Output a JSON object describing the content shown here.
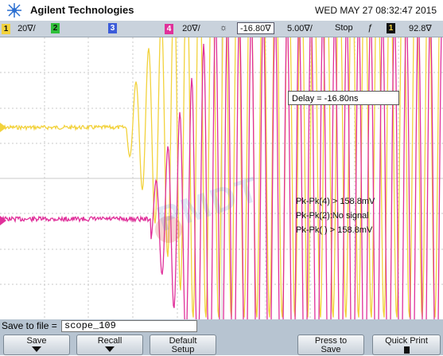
{
  "header": {
    "brand": "Agilent Technologies",
    "datetime": "WED MAY 27 08:32:47 2015"
  },
  "status_bar": {
    "ch1_num": "1",
    "ch1_scale": "20∇/",
    "ch2_num": "2",
    "ch3_num": "3",
    "ch4_num": "4",
    "ch4_scale": "20∇/",
    "delay_value": "-16.80∇",
    "timebase": "5.00∇/",
    "run_state": "Stop",
    "trig_source": "1",
    "trig_level": "92.8∇"
  },
  "screen": {
    "delay_readout": "Delay = -16.80ns",
    "measurements": [
      "Pk-Pk(4) > 158.8mV",
      "Pk-Pk(2):No signal",
      "Pk-Pk( ) > 158.8mV"
    ],
    "watermark": "PMDT"
  },
  "file": {
    "label": "Save to file =",
    "value": "scope_109"
  },
  "softkeys": {
    "save": "Save",
    "recall": "Recall",
    "default_setup_line1": "Default",
    "default_setup_line2": "Setup",
    "press_to_save_line1": "Press to",
    "press_to_save_line2": "Save",
    "quick_print": "Quick Print"
  },
  "colors": {
    "ch1": "#f2d23c",
    "ch2": "#2fbf3a",
    "ch3": "#3b5bd9",
    "ch4": "#e0309a",
    "grid": "#c8c8c8",
    "softkey_bg": "#b7c4d1"
  }
}
